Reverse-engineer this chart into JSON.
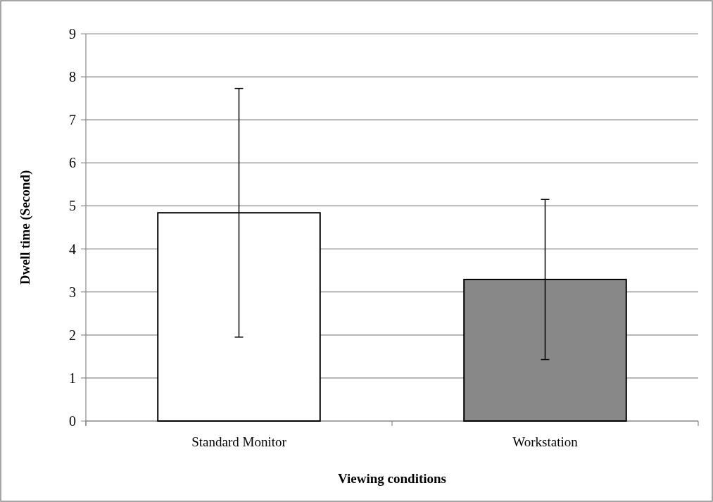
{
  "chart_data": {
    "type": "bar",
    "xlabel": "Viewing conditions",
    "ylabel": "Dwell time (Second)",
    "categories": [
      "Standard Monitor",
      "Workstation"
    ],
    "values": [
      4.84,
      3.29
    ],
    "errors": [
      2.89,
      1.86
    ],
    "colors": [
      "#ffffff",
      "#888888"
    ],
    "ylim": [
      0,
      9
    ],
    "yticks": [
      0,
      1,
      2,
      3,
      4,
      5,
      6,
      7,
      8,
      9
    ],
    "grid": "y"
  }
}
